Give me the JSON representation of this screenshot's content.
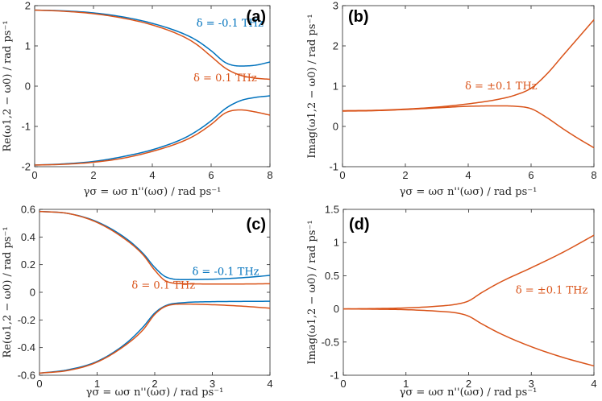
{
  "figure": {
    "colors": {
      "blue": "#0072bd",
      "orange": "#d95319"
    }
  },
  "chart_data": [
    {
      "id": "a",
      "type": "line",
      "panel_label": "(a)",
      "xlabel": "γσ = ωσ n''(ωσ) / rad ps⁻¹",
      "ylabel": "Re(ω1,2 − ω0) / rad ps⁻¹",
      "xlim": [
        0,
        8
      ],
      "ylim": [
        -2,
        2
      ],
      "xticks": [
        0,
        2,
        4,
        6,
        8
      ],
      "yticks": [
        -2,
        -1,
        0,
        1,
        2
      ],
      "xticklabels": [
        "0",
        "2",
        "4",
        "6",
        "8"
      ],
      "yticklabels": [
        "-2",
        "-1",
        "0",
        "1",
        "2"
      ],
      "series": [
        {
          "name": "δ = -0.1 THz (upper)",
          "color": "#0072bd",
          "x": [
            0,
            1,
            2,
            3,
            4,
            5,
            5.5,
            6,
            6.5,
            7,
            7.5,
            8
          ],
          "y": [
            1.89,
            1.87,
            1.82,
            1.72,
            1.56,
            1.32,
            1.14,
            0.88,
            0.58,
            0.5,
            0.52,
            0.6
          ]
        },
        {
          "name": "δ = 0.1 THz (upper)",
          "color": "#d95319",
          "x": [
            0,
            1,
            2,
            3,
            4,
            5,
            5.5,
            6,
            6.5,
            7,
            7.5,
            8
          ],
          "y": [
            1.89,
            1.86,
            1.8,
            1.69,
            1.52,
            1.25,
            1.04,
            0.74,
            0.44,
            0.27,
            0.2,
            0.17
          ]
        },
        {
          "name": "δ = -0.1 THz (lower)",
          "color": "#0072bd",
          "x": [
            0,
            1,
            2,
            3,
            4,
            5,
            5.5,
            6,
            6.5,
            7,
            7.5,
            8
          ],
          "y": [
            -1.96,
            -1.93,
            -1.87,
            -1.75,
            -1.58,
            -1.32,
            -1.12,
            -0.86,
            -0.55,
            -0.36,
            -0.28,
            -0.24
          ]
        },
        {
          "name": "δ = 0.1 THz (lower)",
          "color": "#d95319",
          "x": [
            0,
            1,
            2,
            3,
            4,
            5,
            5.5,
            6,
            6.5,
            7,
            7.5,
            8
          ],
          "y": [
            -1.96,
            -1.94,
            -1.89,
            -1.79,
            -1.62,
            -1.38,
            -1.2,
            -0.95,
            -0.66,
            -0.59,
            -0.64,
            -0.72
          ]
        }
      ],
      "annotations": [
        {
          "text": "δ = -0.1 THz",
          "color": "#0072bd",
          "x": 5.5,
          "y": 1.48
        },
        {
          "text": "δ = 0.1 THz",
          "color": "#d95319",
          "x": 5.4,
          "y": 0.12
        }
      ]
    },
    {
      "id": "b",
      "type": "line",
      "panel_label": "(b)",
      "xlabel": "γσ = ωσ n''(ωσ) / rad ps⁻¹",
      "ylabel": "Imag(ω1,2 − ω0) / rad ps⁻¹",
      "xlim": [
        0,
        8
      ],
      "ylim": [
        -1,
        3
      ],
      "xticks": [
        0,
        2,
        4,
        6,
        8
      ],
      "yticks": [
        -1,
        0,
        1,
        2,
        3
      ],
      "xticklabels": [
        "0",
        "2",
        "4",
        "6",
        "8"
      ],
      "yticklabels": [
        "-1",
        "0",
        "1",
        "2",
        "3"
      ],
      "series": [
        {
          "name": "δ = ±0.1 THz (upper)",
          "color": "#d95319",
          "x": [
            0,
            1,
            2,
            3,
            4,
            5,
            5.5,
            6,
            6.5,
            7,
            7.5,
            8
          ],
          "y": [
            0.39,
            0.4,
            0.43,
            0.48,
            0.56,
            0.68,
            0.78,
            0.95,
            1.3,
            1.75,
            2.2,
            2.65
          ]
        },
        {
          "name": "δ = ±0.1 THz (lower)",
          "color": "#d95319",
          "x": [
            0,
            1,
            2,
            3,
            4,
            5,
            5.5,
            6,
            6.5,
            7,
            7.5,
            8
          ],
          "y": [
            0.38,
            0.39,
            0.42,
            0.46,
            0.5,
            0.51,
            0.5,
            0.44,
            0.22,
            -0.05,
            -0.3,
            -0.53
          ]
        }
      ],
      "annotations": [
        {
          "text": "δ = ±0.1 THz",
          "color": "#d95319",
          "x": 3.9,
          "y": 0.92
        }
      ]
    },
    {
      "id": "c",
      "type": "line",
      "panel_label": "(c)",
      "xlabel": "γσ = ωσ n''(ωσ) / rad ps⁻¹",
      "ylabel": "Re(ω1,2 − ω0) / rad ps⁻¹",
      "xlim": [
        0,
        4
      ],
      "ylim": [
        -0.6,
        0.6
      ],
      "xticks": [
        0,
        1,
        2,
        3,
        4
      ],
      "yticks": [
        -0.6,
        -0.4,
        -0.2,
        0,
        0.2,
        0.4,
        0.6
      ],
      "xticklabels": [
        "0",
        "1",
        "2",
        "3",
        "4"
      ],
      "yticklabels": [
        "-0.6",
        "-0.4",
        "-0.2",
        "0",
        "0.2",
        "0.4",
        "0.6"
      ],
      "series": [
        {
          "name": "δ = -0.1 THz (upper)",
          "color": "#0072bd",
          "x": [
            0,
            0.5,
            1,
            1.5,
            1.8,
            2.0,
            2.2,
            2.5,
            3,
            3.5,
            4
          ],
          "y": [
            0.585,
            0.57,
            0.51,
            0.39,
            0.28,
            0.18,
            0.11,
            0.092,
            0.095,
            0.105,
            0.122
          ]
        },
        {
          "name": "δ = 0.1 THz (upper)",
          "color": "#d95319",
          "x": [
            0,
            0.5,
            1,
            1.5,
            1.8,
            2.0,
            2.2,
            2.5,
            3,
            3.5,
            4
          ],
          "y": [
            0.585,
            0.57,
            0.505,
            0.38,
            0.27,
            0.16,
            0.08,
            0.062,
            0.06,
            0.06,
            0.062
          ]
        },
        {
          "name": "δ = -0.1 THz (lower)",
          "color": "#0072bd",
          "x": [
            0,
            0.5,
            1,
            1.5,
            1.8,
            2.0,
            2.2,
            2.5,
            3,
            3.5,
            4
          ],
          "y": [
            -0.585,
            -0.56,
            -0.5,
            -0.37,
            -0.25,
            -0.15,
            -0.095,
            -0.075,
            -0.068,
            -0.066,
            -0.065
          ]
        },
        {
          "name": "δ = 0.1 THz (lower)",
          "color": "#d95319",
          "x": [
            0,
            0.5,
            1,
            1.5,
            1.8,
            2.0,
            2.2,
            2.5,
            3,
            3.5,
            4
          ],
          "y": [
            -0.585,
            -0.565,
            -0.505,
            -0.38,
            -0.27,
            -0.16,
            -0.1,
            -0.085,
            -0.09,
            -0.1,
            -0.115
          ]
        }
      ],
      "annotations": [
        {
          "text": "δ = -0.1 THz",
          "color": "#0072bd",
          "x": 2.65,
          "y": 0.125
        },
        {
          "text": "δ = 0.1 THz",
          "color": "#d95319",
          "x": 1.6,
          "y": 0.025
        }
      ]
    },
    {
      "id": "d",
      "type": "line",
      "panel_label": "(d)",
      "xlabel": "γσ = ωσ n''(ωσ) / rad ps⁻¹",
      "ylabel": "Imag(ω1,2 − ω0) / rad ps⁻¹",
      "xlim": [
        0,
        4
      ],
      "ylim": [
        -1,
        1.5
      ],
      "xticks": [
        0,
        1,
        2,
        3,
        4
      ],
      "yticks": [
        -1,
        -0.5,
        0,
        0.5,
        1,
        1.5
      ],
      "xticklabels": [
        "0",
        "1",
        "2",
        "3",
        "4"
      ],
      "yticklabels": [
        "-1",
        "-0.5",
        "0",
        "0.5",
        "1",
        "1.5"
      ],
      "series": [
        {
          "name": "δ = ±0.1 THz (upper)",
          "color": "#d95319",
          "x": [
            0,
            0.5,
            1,
            1.5,
            1.8,
            2.0,
            2.2,
            2.5,
            3,
            3.5,
            4
          ],
          "y": [
            0.0,
            0.005,
            0.015,
            0.04,
            0.07,
            0.12,
            0.24,
            0.4,
            0.62,
            0.85,
            1.11
          ]
        },
        {
          "name": "δ = ±0.1 THz (lower)",
          "color": "#d95319",
          "x": [
            0,
            0.5,
            1,
            1.5,
            1.8,
            2.0,
            2.2,
            2.5,
            3,
            3.5,
            4
          ],
          "y": [
            0.0,
            -0.005,
            -0.012,
            -0.035,
            -0.06,
            -0.11,
            -0.22,
            -0.37,
            -0.57,
            -0.73,
            -0.86
          ]
        }
      ],
      "annotations": [
        {
          "text": "δ = ±0.1 THz",
          "color": "#d95319",
          "x": 2.75,
          "y": 0.23
        }
      ]
    }
  ]
}
